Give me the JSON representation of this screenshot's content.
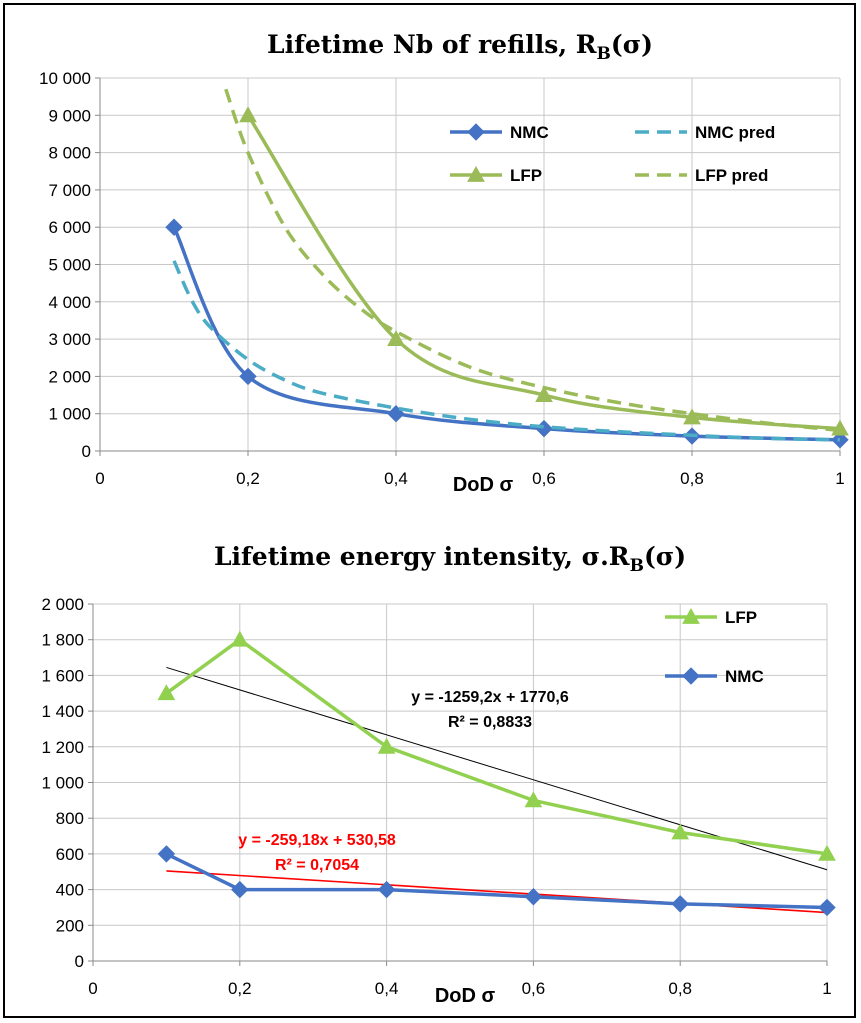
{
  "chart_data": [
    {
      "type": "line",
      "title": "Lifetime Nb of refills, R",
      "title_sub": "B",
      "title_suffix": "(σ)",
      "xlabel": "DoD σ",
      "ylabel": "",
      "xlim": [
        0,
        1
      ],
      "ylim": [
        0,
        10000
      ],
      "x_ticks": [
        0,
        0.2,
        0.4,
        0.6,
        0.8,
        1
      ],
      "x_tick_labels": [
        "0",
        "0,2",
        "0,4",
        "0,6",
        "0,8",
        "1"
      ],
      "y_ticks": [
        0,
        1000,
        2000,
        3000,
        4000,
        5000,
        6000,
        7000,
        8000,
        9000,
        10000
      ],
      "y_tick_labels": [
        "0",
        "1 000",
        "2 000",
        "3 000",
        "4 000",
        "5 000",
        "6 000",
        "7 000",
        "8 000",
        "9 000",
        "10 000"
      ],
      "grid": true,
      "legend": "top-right",
      "series": [
        {
          "name": "NMC",
          "style": "solid",
          "marker": "diamond",
          "color": "#4472c4",
          "x": [
            0.1,
            0.2,
            0.4,
            0.6,
            0.8,
            1.0
          ],
          "y": [
            6000,
            2000,
            1000,
            600,
            400,
            300
          ]
        },
        {
          "name": "NMC pred",
          "style": "dashed",
          "marker": "none",
          "color": "#4bacc6",
          "x": [
            0.1,
            0.125,
            0.15,
            0.2,
            0.25,
            0.3,
            0.4,
            0.5,
            0.6,
            0.7,
            0.8,
            0.9,
            1.0
          ],
          "y": [
            5100,
            4000,
            3300,
            2450,
            1900,
            1550,
            1150,
            850,
            650,
            520,
            420,
            340,
            300
          ]
        },
        {
          "name": "LFP",
          "style": "solid",
          "marker": "triangle",
          "color": "#9bbb59",
          "x": [
            0.2,
            0.4,
            0.6,
            0.8,
            1.0
          ],
          "y": [
            9000,
            3000,
            1500,
            900,
            600
          ]
        },
        {
          "name": "LFP pred",
          "style": "dashed",
          "marker": "none",
          "color": "#9bbb59",
          "x": [
            0.17,
            0.2,
            0.25,
            0.3,
            0.35,
            0.4,
            0.5,
            0.6,
            0.7,
            0.8,
            0.9,
            1.0
          ],
          "y": [
            9700,
            8000,
            6000,
            4750,
            3850,
            3200,
            2250,
            1700,
            1300,
            1000,
            750,
            550
          ]
        }
      ]
    },
    {
      "type": "line",
      "title": "Lifetime energy intensity, σ.R",
      "title_sub": "B",
      "title_suffix": "(σ)",
      "xlabel": "DoD σ",
      "ylabel": "",
      "xlim": [
        0,
        1
      ],
      "ylim": [
        0,
        2000
      ],
      "x_ticks": [
        0,
        0.2,
        0.4,
        0.6,
        0.8,
        1
      ],
      "x_tick_labels": [
        "0",
        "0,2",
        "0,4",
        "0,6",
        "0,8",
        "1"
      ],
      "y_ticks": [
        0,
        200,
        400,
        600,
        800,
        1000,
        1200,
        1400,
        1600,
        1800,
        2000
      ],
      "y_tick_labels": [
        "0",
        "200",
        "400",
        "600",
        "800",
        "1 000",
        "1 200",
        "1 400",
        "1 600",
        "1 800",
        "2 000"
      ],
      "grid": true,
      "legend": "top-right",
      "series": [
        {
          "name": "LFP",
          "style": "solid",
          "marker": "triangle",
          "color": "#92d050",
          "x": [
            0.1,
            0.2,
            0.4,
            0.6,
            0.8,
            1.0
          ],
          "y": [
            1500,
            1800,
            1200,
            900,
            720,
            600
          ]
        },
        {
          "name": "NMC",
          "style": "solid",
          "marker": "diamond",
          "color": "#4472c4",
          "x": [
            0.1,
            0.2,
            0.4,
            0.6,
            0.8,
            1.0
          ],
          "y": [
            600,
            400,
            400,
            360,
            320,
            300
          ]
        }
      ],
      "trendlines": [
        {
          "of": "LFP",
          "color": "#000000",
          "slope": -1259.2,
          "intercept": 1770.6,
          "equation": "y = -1259,2x + 1770,6",
          "r2": "R² = 0,8833"
        },
        {
          "of": "NMC",
          "color": "#ff0000",
          "slope": -259.18,
          "intercept": 530.58,
          "equation": "y = -259,18x + 530,58",
          "r2": "R² = 0,7054"
        }
      ]
    }
  ]
}
